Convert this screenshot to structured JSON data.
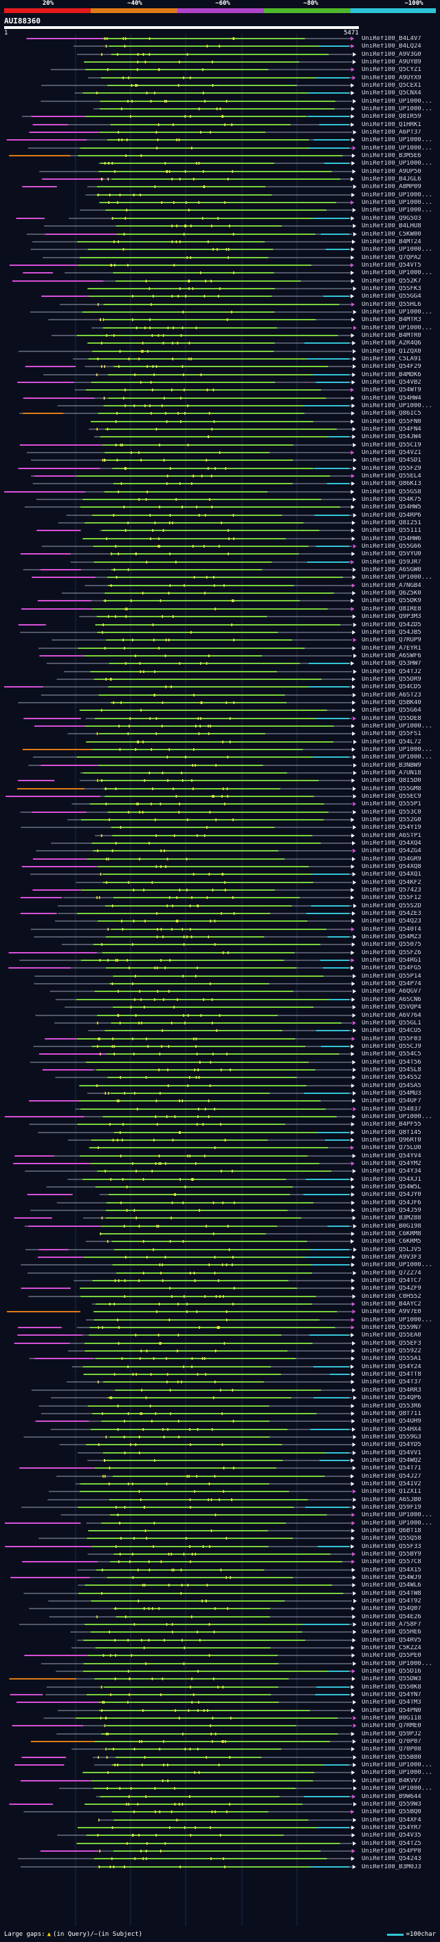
{
  "colors": {
    "background": "#0a0e1c",
    "gray": "#9aa0b4",
    "magenta": "#d850d8",
    "orange": "#e07a18",
    "green": "#7ad23c",
    "cyan": "#34c4d8",
    "yellow": "#f2ee3c",
    "white": "#ffffff"
  },
  "legend": {
    "ticks": [
      "20%",
      "~40%",
      "~60%",
      "~80%",
      "~100%"
    ],
    "colors": [
      "#e41a1c",
      "#e07a18",
      "#b044c8",
      "#4fb82c",
      "#2ec4d8"
    ]
  },
  "query": {
    "name": "AUI88360",
    "start": "1",
    "end": "5471"
  },
  "hits": [
    "UniRef100_B4L4V7",
    "UniRef100_B4LQ24",
    "UniRef100_A9V3G0",
    "UniRef100_A9UYB9",
    "UniRef100_Q5CYZ1",
    "UniRef100_A9UYX9",
    "UniRef100_Q5CEX1",
    "UniRef100_Q5CNX4",
    "UniRef100_UP1000...",
    "UniRef100_UP1000...",
    "UniRef100_Q8IR59",
    "UniRef100_Q1HRK1",
    "UniRef100_A6PT37",
    "UniRef100_UP1000...",
    "UniRef100_UP1000...",
    "UniRef100_B3M5E6",
    "UniRef100_UP1000...",
    "UniRef100_A9UP50",
    "UniRef100_B4JGL6",
    "UniRef100_A8MP09",
    "UniRef100_UP1000...",
    "UniRef100_UP1000...",
    "UniRef100_UP1000...",
    "UniRef100_Q9G5O3",
    "UniRef100_B4LHU8",
    "UniRef100_C5KW00",
    "UniRef100_B4MT24",
    "UniRef100_UP1000...",
    "UniRef100_Q7QPA2",
    "UniRef100_Q54VT5",
    "UniRef100_UP1000...",
    "UniRef100_Q552K7",
    "UniRef100_Q5SFK3",
    "UniRef100_Q55GG4",
    "UniRef100_Q55HL6",
    "UniRef100_UP1000...",
    "UniRef100_B4MTR3",
    "UniRef100_UP1000...",
    "UniRef100_B4MTR0",
    "UniRef100_A2R4Q6",
    "UniRef100_Q1ZQX0",
    "UniRef100_C5LA91",
    "UniRef100_Q54F29",
    "UniRef100_B4MDK6",
    "UniRef100_Q54VB2",
    "UniRef100_Q54WT9",
    "UniRef100_Q54HW4",
    "UniRef100_UP1000...",
    "UniRef100_Q86IC5",
    "UniRef100_Q55FN0",
    "UniRef100_Q54FN4",
    "UniRef100_Q54JW4",
    "UniRef100_Q55CI9",
    "UniRef100_Q54VZ1",
    "UniRef100_Q54SD1",
    "UniRef100_Q55FZ9",
    "UniRef100_Q55EL4",
    "UniRef100_Q86KI3",
    "UniRef100_Q55GS8",
    "UniRef100_Q54K75",
    "UniRef100_Q54HW5",
    "UniRef100_Q54RP6",
    "UniRef100_Q8I251",
    "UniRef100_Q55111",
    "UniRef100_Q54HW6",
    "UniRef100_Q55G66",
    "UniRef100_Q5VYU0",
    "UniRef100_Q59JR7",
    "UniRef100_A6SGW0",
    "UniRef100_UP1000...",
    "UniRef100_A7NGB4",
    "UniRef100_Q6Z5K0",
    "UniRef100_Q55DK9",
    "UniRef100_Q8IRE8",
    "UniRef100_Q9P3M3",
    "UniRef100_Q54ZD5",
    "UniRef100_Q54JB5",
    "UniRef100_Q7RUP9",
    "UniRef100_A7EYR1",
    "UniRef100_A6SWF6",
    "UniRef100_Q53HW7",
    "UniRef100_Q54TJ2",
    "UniRef100_Q55DR9",
    "UniRef100_Q54CD5",
    "UniRef100_A6ST23",
    "UniRef100_Q5BK40",
    "UniRef100_Q55G64",
    "UniRef100_Q55DE8",
    "UniRef100_UP1000...",
    "UniRef100_Q55FS1",
    "UniRef100_Q54L72",
    "UniRef100_UP1000...",
    "UniRef100_UP1000...",
    "UniRef100_B3NBW9",
    "UniRef100_A7UN18",
    "UniRef100_Q8I5D0",
    "UniRef100_Q55GM8",
    "UniRef100_Q55EC9",
    "UniRef100_Q555P1",
    "UniRef100_Q553C0",
    "UniRef100_Q552G0",
    "UniRef100_Q54Y19",
    "UniRef100_A6STP1",
    "UniRef100_Q54XQ4",
    "UniRef100_Q54ZG4",
    "UniRef100_Q54GR9",
    "UniRef100_Q54XQ8",
    "UniRef100_Q54XQ1",
    "UniRef100_Q54KF2",
    "UniRef100_Q57423",
    "UniRef100_Q55F12",
    "UniRef100_Q55S2D",
    "UniRef100_Q54ZE3",
    "UniRef100_Q54Q23",
    "UniRef100_Q540T4",
    "UniRef100_Q54MZ3",
    "UniRef100_Q55075",
    "UniRef100_Q5SFZ6",
    "UniRef100_Q54RG1",
    "UniRef100_Q54FG5",
    "UniRef100_Q55P14",
    "UniRef100_Q54P74",
    "UniRef100_A6QGV7",
    "UniRef100_A6SCN6",
    "UniRef100_Q5VQP4",
    "UniRef100_A6V764",
    "UniRef100_Q55GL1",
    "UniRef100_Q54CU5",
    "UniRef100_Q55F03",
    "UniRef100_Q55CJ9",
    "UniRef100_Q554C5",
    "UniRef100_Q54T56",
    "UniRef100_Q54SL8",
    "UniRef100_Q54S52",
    "UniRef100_Q54SA5",
    "UniRef100_Q54MU3",
    "UniRef100_Q54UF7",
    "UniRef100_Q54837",
    "UniRef100_UP1000...",
    "UniRef100_B4PF55",
    "UniRef100_Q8T145",
    "UniRef100_Q96RT0",
    "UniRef100_Q75LU0",
    "UniRef100_Q54YV4",
    "UniRef100_Q54YM2",
    "UniRef100_Q54Y34",
    "UniRef100_Q54XJ1",
    "UniRef100_Q54W5L",
    "UniRef100_Q54JY0",
    "UniRef100_Q54JF6",
    "UniRef100_Q54J59",
    "UniRef100_B3M288",
    "UniRef100_B0G198",
    "UniRef100_C6KRM8",
    "UniRef100_C6KRM5",
    "UniRef100_Q5LJV5",
    "UniRef100_A9V3F3",
    "UniRef100_UP1000...",
    "UniRef100_Q7ZZ74",
    "UniRef100_Q54TC7",
    "UniRef100_Q54ZF9",
    "UniRef100_C0H552",
    "UniRef100_B4AYC2",
    "UniRef100_A9V7E0",
    "UniRef100_UP1000...",
    "UniRef100_Q559N7",
    "UniRef100_Q55EA0",
    "UniRef100_Q55EF3",
    "UniRef100_Q55922",
    "UniRef100_Q555A1",
    "UniRef100_Q54Y24",
    "UniRef100_Q54TT8",
    "UniRef100_Q54T37",
    "UniRef100_Q54RR3",
    "UniRef100_Q54QP6",
    "UniRef100_Q553R6",
    "UniRef100_Q8T711",
    "UniRef100_Q54UH9",
    "UniRef100_Q54HX4",
    "UniRef100_Q559G3",
    "UniRef100_Q54YD5",
    "UniRef100_Q54VV1",
    "UniRef100_Q54WQ2",
    "UniRef100_Q54T71",
    "UniRef100_Q54J27",
    "UniRef100_Q54IV2",
    "UniRef100_Q1ZXI1",
    "UniRef100_A6SJB0",
    "UniRef100_Q59F19",
    "UniRef100_UP1000...",
    "UniRef100_UP1000...",
    "UniRef100_Q6BT18",
    "UniRef100_Q55Q58",
    "UniRef100_Q55F33",
    "UniRef100_Q55BY9",
    "UniRef100_Q557C8",
    "UniRef100_Q54X15",
    "UniRef100_Q54WJ9",
    "UniRef100_Q54WL6",
    "UniRef100_Q54TW8",
    "UniRef100_Q54T92",
    "UniRef100_Q54Q07",
    "UniRef100_Q54E26",
    "UniRef100_A7S8F7",
    "UniRef100_Q55HE6",
    "UniRef100_Q54RV5",
    "UniRef100_C5KZZ4",
    "UniRef100_Q55PE0",
    "UniRef100_UP1000...",
    "UniRef100_Q55D16",
    "UniRef100_Q55DW3",
    "UniRef100_Q550K8",
    "UniRef100_Q54YN7",
    "UniRef100_Q54TM3",
    "UniRef100_Q54PN0",
    "UniRef100_B0G118",
    "UniRef100_Q7RME0",
    "UniRef100_Q59PJ2",
    "UniRef100_Q70P07",
    "UniRef100_Q70P08",
    "UniRef100_Q55B80",
    "UniRef100_UP1000...",
    "UniRef100_UP1000...",
    "UniRef100_B4KVV7",
    "UniRef100_UP1000...",
    "UniRef100_B9W644",
    "UniRef100_Q559W3",
    "UniRef100_Q55BQ0",
    "UniRef100_Q54XF4",
    "UniRef100_Q54YR7",
    "UniRef100_Q54V35",
    "UniRef100_Q54TZ5",
    "UniRef100_Q54PP8",
    "UniRef100_Q54243",
    "UniRef100_B3M0J3"
  ],
  "footer": {
    "gaps_label": "Large gaps:",
    "in_query_label": "(in Query)/",
    "in_subject_label": "(in Subject)",
    "scale_label": "=100char"
  }
}
